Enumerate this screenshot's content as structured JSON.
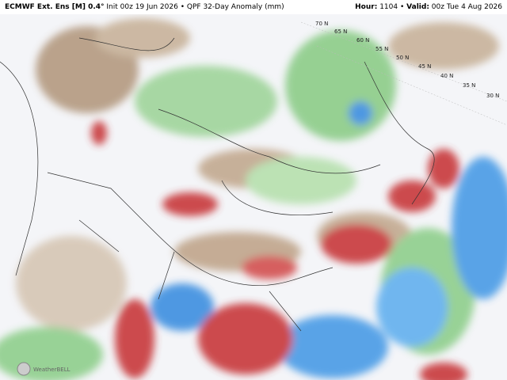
{
  "header": {
    "left": [
      {
        "text": "ECMWF Ext. Ens [M] 0.4°",
        "bold": true
      },
      {
        "text": "Init 00z 19 Jun 2026",
        "bold": false
      },
      {
        "text": "•",
        "bold": false
      },
      {
        "text": "QPF 32-Day Anomaly (mm)",
        "bold": false
      }
    ],
    "right": [
      {
        "text": "Hour:",
        "bold": true
      },
      {
        "text": "1104",
        "bold": false
      },
      {
        "text": "•",
        "bold": false
      },
      {
        "text": "Valid:",
        "bold": true
      },
      {
        "text": "00z Tue 4 Aug 2026",
        "bold": false
      }
    ]
  },
  "map": {
    "latitude_labels": [
      "70 N",
      "65 N",
      "60 N",
      "55 N",
      "50 N",
      "45 N",
      "40 N",
      "35 N",
      "30 N"
    ],
    "watermark": "WeatherBELL"
  }
}
